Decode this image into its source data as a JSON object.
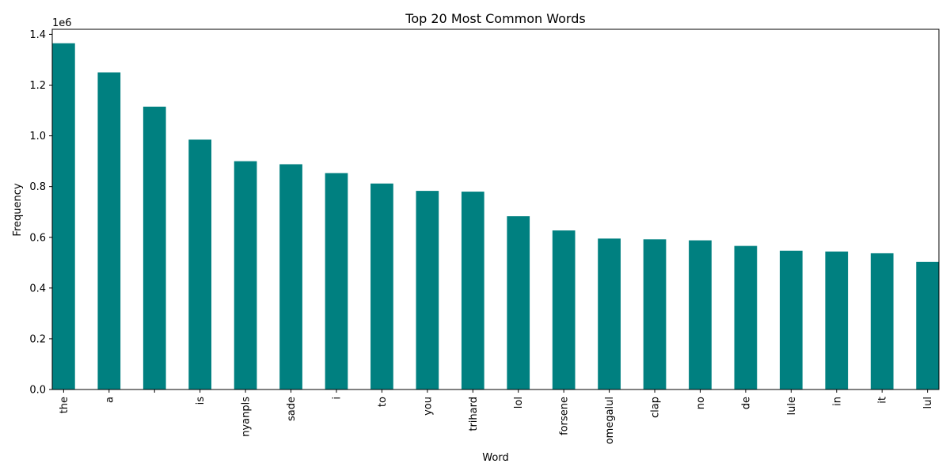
{
  "chart_data": {
    "type": "bar",
    "title": "Top 20 Most Common Words",
    "xlabel": "Word",
    "ylabel": "Frequency",
    "y_offset_label": "1e6",
    "categories": [
      "the",
      "a",
      "",
      "is",
      "nyanpls",
      "sade",
      "i",
      "to",
      "you",
      "trihard",
      "lol",
      "forsene",
      "omegalul",
      "clap",
      "no",
      "de",
      "lule",
      "in",
      "it",
      "lul"
    ],
    "values": [
      1365000,
      1250000,
      1115000,
      985000,
      900000,
      888000,
      853000,
      812000,
      783000,
      780000,
      683000,
      627000,
      595000,
      592000,
      588000,
      566000,
      547000,
      544000,
      537000,
      503000
    ],
    "ylim": [
      0,
      1420000
    ],
    "yticks": [
      0,
      200000,
      400000,
      600000,
      800000,
      1000000,
      1200000,
      1400000
    ],
    "ytick_labels": [
      "0.0",
      "0.2",
      "0.4",
      "0.6",
      "0.8",
      "1.0",
      "1.2",
      "1.4"
    ],
    "bar_color": "#008080",
    "grid": false,
    "legend": "none"
  }
}
